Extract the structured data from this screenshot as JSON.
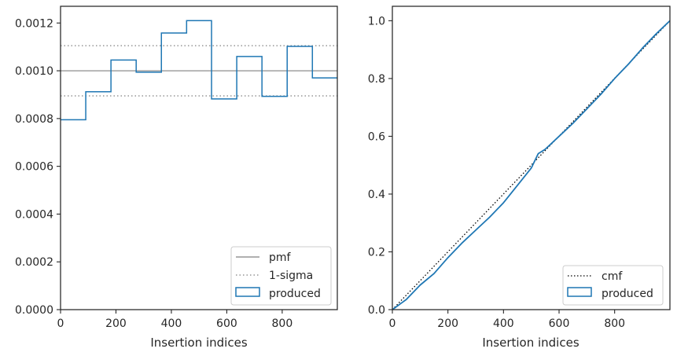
{
  "chart_data": [
    {
      "type": "step",
      "xlabel": "Insertion indices",
      "ylabel": "",
      "xlim": [
        0,
        999
      ],
      "ylim": [
        0,
        0.00127
      ],
      "xticks": [
        "0",
        "200",
        "400",
        "600",
        "800"
      ],
      "yticks": [
        "0.0000",
        "0.0002",
        "0.0004",
        "0.0006",
        "0.0008",
        "0.0010",
        "0.0012"
      ],
      "grid": false,
      "legend_position": "lower-right",
      "legend": [
        "pmf",
        "1-sigma",
        "produced"
      ],
      "reference_lines": {
        "pmf": 0.001,
        "sigma_upper": 0.001105,
        "sigma_lower": 0.000895
      },
      "bin_edges": [
        0,
        91,
        182,
        273,
        364,
        455,
        545,
        636,
        727,
        818,
        909,
        999
      ],
      "values": [
        0.000795,
        0.000912,
        0.001045,
        0.000994,
        0.001158,
        0.00121,
        0.000882,
        0.00106,
        0.000893,
        0.001102,
        0.00097
      ],
      "colors": {
        "produced": "#1f77b4",
        "pmf": "#808080",
        "sigma": "#808080"
      }
    },
    {
      "type": "line",
      "xlabel": "Insertion indices",
      "ylabel": "",
      "xlim": [
        0,
        999
      ],
      "ylim": [
        0,
        1.05
      ],
      "xticks": [
        "0",
        "200",
        "400",
        "600",
        "800"
      ],
      "yticks": [
        "0.0",
        "0.2",
        "0.4",
        "0.6",
        "0.8",
        "1.0"
      ],
      "grid": false,
      "legend_position": "lower-right",
      "legend": [
        "cmf",
        "produced"
      ],
      "series": [
        {
          "name": "cmf",
          "x": [
            0,
            999
          ],
          "y": [
            0,
            1.0
          ]
        },
        {
          "name": "produced",
          "x": [
            0,
            50,
            100,
            150,
            200,
            250,
            300,
            350,
            400,
            450,
            500,
            525,
            550,
            600,
            650,
            700,
            750,
            800,
            850,
            900,
            950,
            999
          ],
          "y": [
            0,
            0.035,
            0.085,
            0.125,
            0.18,
            0.23,
            0.275,
            0.32,
            0.37,
            0.43,
            0.49,
            0.54,
            0.555,
            0.6,
            0.645,
            0.695,
            0.745,
            0.8,
            0.85,
            0.905,
            0.955,
            1.0
          ]
        }
      ],
      "colors": {
        "produced": "#1f77b4",
        "cmf": "#000000"
      }
    }
  ]
}
